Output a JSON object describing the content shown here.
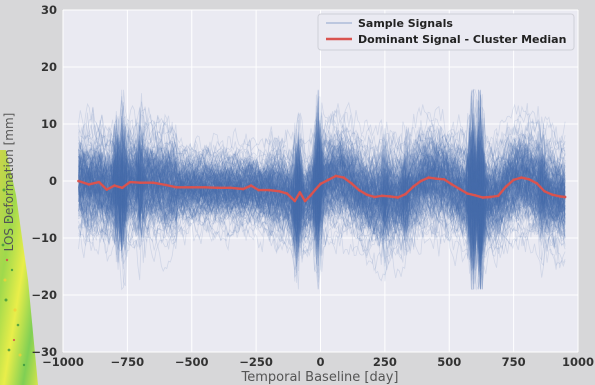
{
  "chart_data": {
    "type": "line",
    "xlabel": "Temporal Baseline [day]",
    "ylabel": "LOS Deformation [mm]",
    "xlim": [
      -1000,
      1000
    ],
    "ylim": [
      -30,
      30
    ],
    "xticks": [
      -1000,
      -750,
      -500,
      -250,
      0,
      250,
      500,
      750,
      1000
    ],
    "yticks": [
      -30,
      -20,
      -10,
      0,
      10,
      20,
      30
    ],
    "xtick_labels": [
      "−1000",
      "−750",
      "−500",
      "−250",
      "0",
      "250",
      "500",
      "750",
      "1000"
    ],
    "ytick_labels": [
      "−30",
      "−20",
      "−10",
      "0",
      "10",
      "20",
      "30"
    ],
    "grid": true,
    "legend_position": "top-right",
    "legend": [
      {
        "label": "Sample Signals",
        "color": "#4c72b0"
      },
      {
        "label": "Dominant Signal - Cluster Median",
        "color": "#d9534f"
      }
    ],
    "series": [
      {
        "name": "Dominant Signal - Cluster Median",
        "color": "#d9534f",
        "x": [
          -940,
          -900,
          -860,
          -830,
          -800,
          -770,
          -740,
          -700,
          -650,
          -600,
          -560,
          -500,
          -450,
          -400,
          -350,
          -300,
          -270,
          -240,
          -200,
          -160,
          -130,
          -100,
          -80,
          -60,
          -40,
          -20,
          0,
          30,
          60,
          90,
          120,
          150,
          180,
          210,
          240,
          270,
          300,
          330,
          360,
          390,
          420,
          450,
          480,
          510,
          540,
          570,
          600,
          630,
          660,
          690,
          720,
          750,
          780,
          810,
          840,
          870,
          900,
          930,
          950
        ],
        "y": [
          0,
          -0.6,
          -0.2,
          -1.5,
          -0.8,
          -1.2,
          -0.2,
          -0.3,
          -0.3,
          -0.7,
          -1.1,
          -1.1,
          -1.1,
          -1.2,
          -1.2,
          -1.4,
          -0.8,
          -1.6,
          -1.6,
          -1.8,
          -2.2,
          -3.5,
          -2.0,
          -3.5,
          -2.6,
          -1.5,
          -0.5,
          0.2,
          0.9,
          0.6,
          -0.4,
          -1.6,
          -2.4,
          -2.8,
          -2.6,
          -2.7,
          -2.9,
          -2.3,
          -1.0,
          0.0,
          0.6,
          0.4,
          0.3,
          -0.6,
          -1.4,
          -2.2,
          -2.5,
          -2.9,
          -2.8,
          -2.6,
          -1.0,
          0.2,
          0.6,
          0.3,
          -0.4,
          -1.8,
          -2.4,
          -2.7,
          -2.8
        ]
      }
    ],
    "sample_signals": {
      "name": "Sample Signals",
      "color": "#4c72b0",
      "count": 240,
      "x_start": -940,
      "x_end": 950,
      "typical_spread_mm": [
        -10,
        10
      ],
      "extreme_range_mm": [
        -19,
        16
      ]
    }
  }
}
